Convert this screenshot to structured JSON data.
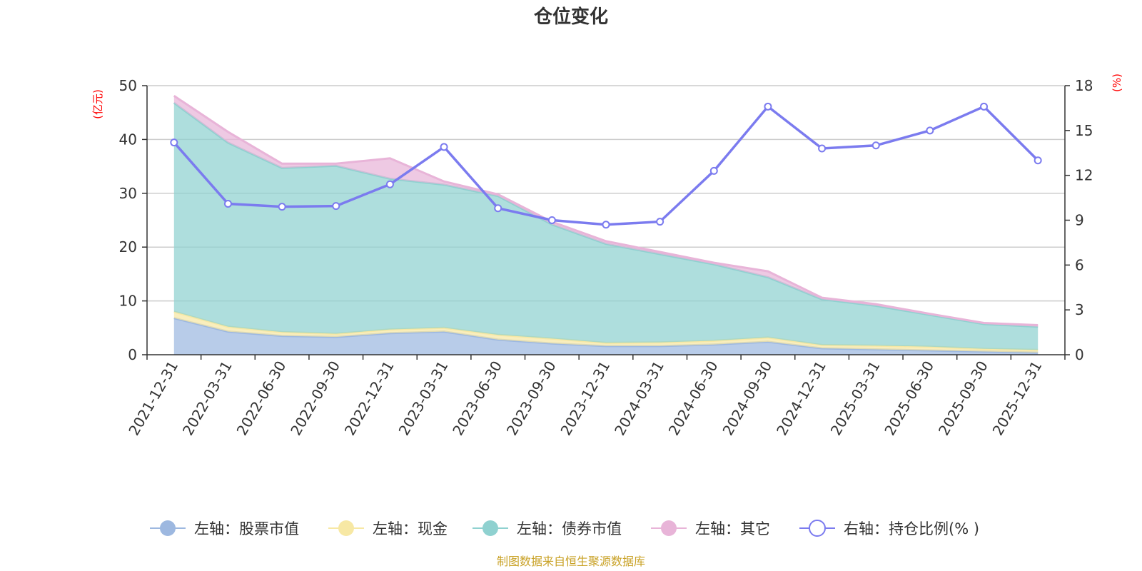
{
  "chart_data": {
    "type": "area",
    "title": "仓位变化",
    "left_unit": "(亿元)",
    "right_unit": "(%)",
    "categories": [
      "2021-12-31",
      "2022-03-31",
      "2022-06-30",
      "2022-09-30",
      "2022-12-31",
      "2023-03-31",
      "2023-06-30",
      "2023-09-30",
      "2023-12-31",
      "2024-03-31",
      "2024-06-30",
      "2024-09-30",
      "2024-12-31",
      "2025-03-31",
      "2025-06-30",
      "2025-09-30",
      "2025-12-31"
    ],
    "left_axis": {
      "min": 0,
      "max": 50,
      "ticks": [
        0,
        10,
        20,
        30,
        40,
        50
      ]
    },
    "right_axis": {
      "min": 0,
      "max": 18,
      "ticks": [
        0,
        3,
        6,
        9,
        12,
        15,
        18
      ]
    },
    "stacked_series": [
      {
        "name": "左轴：股票市值",
        "color": "#9db8e0",
        "values": [
          6.8,
          4.3,
          3.5,
          3.3,
          4.0,
          4.3,
          2.8,
          2.1,
          1.6,
          1.6,
          1.9,
          2.4,
          1.2,
          1.0,
          0.8,
          0.6,
          0.4
        ]
      },
      {
        "name": "左轴：现金",
        "color": "#f7e8a4",
        "values": [
          1.2,
          0.9,
          0.7,
          0.6,
          0.7,
          0.7,
          0.9,
          0.9,
          0.6,
          0.7,
          0.7,
          0.8,
          0.6,
          0.7,
          0.7,
          0.5,
          0.5
        ]
      },
      {
        "name": "左轴：债券市值",
        "color": "#8fd1d0",
        "values": [
          38.8,
          34.2,
          30.5,
          31.2,
          28.0,
          26.6,
          25.8,
          21.2,
          18.4,
          16.4,
          14.2,
          11.2,
          8.5,
          7.4,
          5.9,
          4.6,
          4.3
        ]
      },
      {
        "name": "左轴：其它",
        "color": "#e8b4d8",
        "values": [
          1.3,
          2.0,
          0.8,
          0.4,
          3.8,
          0.6,
          0.3,
          0.5,
          0.5,
          0.4,
          0.3,
          1.1,
          0.3,
          0.3,
          0.2,
          0.2,
          0.3
        ]
      }
    ],
    "line_series": {
      "name": "右轴：持仓比例(% )",
      "color": "#7b7bef",
      "values": [
        14.2,
        10.1,
        9.9,
        9.95,
        11.4,
        13.9,
        9.8,
        9.0,
        8.7,
        8.9,
        12.3,
        16.6,
        13.8,
        14.0,
        15.0,
        16.6,
        13.0
      ]
    }
  },
  "source_text": "制图数据来自恒生聚源数据库"
}
